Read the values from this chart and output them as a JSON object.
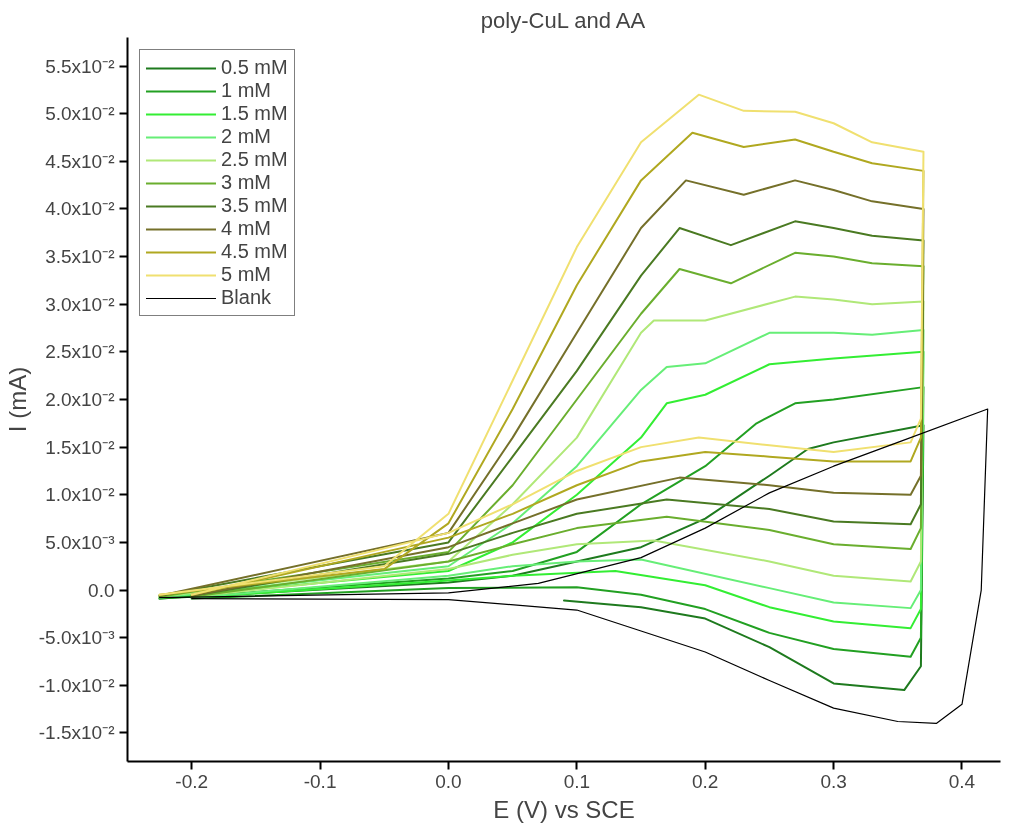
{
  "chart_data": {
    "type": "line",
    "title": "poly-CuL and AA",
    "xlabel": "E (V) vs SCE",
    "ylabel": "I (mA)",
    "xlim": [
      -0.25,
      0.43
    ],
    "ylim": [
      -0.018,
      0.058
    ],
    "xticks": [
      -0.2,
      -0.1,
      {
        "value": 0,
        "label": "0.0"
      },
      0.1,
      0.2,
      0.3,
      0.4
    ],
    "yticks": [
      {
        "value": -0.015,
        "label": "-1.5x10⁻²"
      },
      {
        "value": -0.01,
        "label": "-1.0x10⁻²"
      },
      {
        "value": -0.005,
        "label": "-5.0x10⁻³"
      },
      {
        "value": 0,
        "label": "0.0"
      },
      {
        "value": 0.005,
        "label": "5.0x10⁻³"
      },
      {
        "value": 0.01,
        "label": "1.0x10⁻²"
      },
      {
        "value": 0.015,
        "label": "1.5x10⁻²"
      },
      {
        "value": 0.02,
        "label": "2.0x10⁻²"
      },
      {
        "value": 0.025,
        "label": "2.5x10⁻²"
      },
      {
        "value": 0.03,
        "label": "3.0x10⁻²"
      },
      {
        "value": 0.035,
        "label": "3.5x10⁻²"
      },
      {
        "value": 0.04,
        "label": "4.0x10⁻²"
      },
      {
        "value": 0.045,
        "label": "4.5x10⁻²"
      },
      {
        "value": 0.05,
        "label": "5.0x10⁻²"
      },
      {
        "value": 0.055,
        "label": "5.5x10⁻²"
      }
    ],
    "grid": false,
    "legend": "top left",
    "marker": "none",
    "line_style": "solid",
    "series": [
      {
        "name": "0.5 mM",
        "color": "#1e7a1e",
        "x": [
          -0.225,
          0,
          0.05,
          0.1,
          0.15,
          0.2,
          0.25,
          0.28,
          0.3,
          0.37,
          0.368,
          0.355,
          0.3,
          0.25,
          0.2,
          0.15,
          0.09
        ],
        "values": [
          -0.0009,
          0.0008,
          0.0015,
          0.003,
          0.0045,
          0.0075,
          0.012,
          0.0148,
          0.0155,
          0.0173,
          -0.008,
          -0.0105,
          -0.0098,
          -0.006,
          -0.003,
          -0.0018,
          -0.0011
        ]
      },
      {
        "name": "1 mM",
        "color": "#22a022",
        "x": [
          -0.225,
          0,
          0.05,
          0.1,
          0.15,
          0.2,
          0.24,
          0.27,
          0.3,
          0.37,
          0.368,
          0.36,
          0.3,
          0.25,
          0.2,
          0.15,
          0.1,
          0,
          -0.2
        ],
        "values": [
          -0.0009,
          0.0012,
          0.002,
          0.004,
          0.009,
          0.013,
          0.0175,
          0.0196,
          0.02,
          0.0213,
          -0.005,
          -0.007,
          -0.0062,
          -0.0045,
          -0.002,
          -0.0005,
          0.0003,
          0.0002,
          -0.0009
        ]
      },
      {
        "name": "1.5 mM",
        "color": "#33ee33",
        "x": [
          -0.225,
          0,
          0.05,
          0.1,
          0.15,
          0.17,
          0.2,
          0.25,
          0.3,
          0.37,
          0.368,
          0.36,
          0.3,
          0.25,
          0.2,
          0.13,
          0.05,
          0,
          -0.2
        ],
        "values": [
          -0.0008,
          0.002,
          0.005,
          0.01,
          0.016,
          0.0196,
          0.0205,
          0.0237,
          0.0243,
          0.025,
          -0.002,
          -0.004,
          -0.0033,
          -0.0018,
          0.0005,
          0.002,
          0.0015,
          0.001,
          -0.0008
        ]
      },
      {
        "name": "2 mM",
        "color": "#66ee77",
        "x": [
          -0.225,
          0,
          0.05,
          0.1,
          0.15,
          0.17,
          0.2,
          0.25,
          0.3,
          0.33,
          0.37,
          0.368,
          0.36,
          0.3,
          0.25,
          0.15,
          0.1,
          0.05,
          0,
          -0.2
        ],
        "values": [
          -0.0008,
          0.0025,
          0.007,
          0.013,
          0.021,
          0.0234,
          0.0238,
          0.027,
          0.027,
          0.0268,
          0.0273,
          0.0,
          -0.0019,
          -0.0013,
          0.0002,
          0.0032,
          0.003,
          0.0025,
          0.0015,
          -0.0008
        ]
      },
      {
        "name": "2.5 mM",
        "color": "#b0e878",
        "x": [
          -0.225,
          0,
          0.05,
          0.1,
          0.15,
          0.16,
          0.2,
          0.27,
          0.3,
          0.33,
          0.37,
          0.368,
          0.36,
          0.3,
          0.25,
          0.16,
          0.1,
          0.05,
          0,
          -0.2
        ],
        "values": [
          -0.0007,
          0.003,
          0.009,
          0.016,
          0.027,
          0.0283,
          0.0283,
          0.0308,
          0.0305,
          0.03,
          0.0303,
          0.003,
          0.0009,
          0.0015,
          0.003,
          0.0052,
          0.0048,
          0.0037,
          0.0022,
          -0.0007
        ]
      },
      {
        "name": "3 mM",
        "color": "#6aae2e",
        "x": [
          -0.225,
          0,
          0.05,
          0.1,
          0.15,
          0.18,
          0.22,
          0.27,
          0.3,
          0.33,
          0.37,
          0.368,
          0.36,
          0.3,
          0.25,
          0.17,
          0.1,
          0.05,
          0,
          -0.2
        ],
        "values": [
          -0.0007,
          0.004,
          0.011,
          0.02,
          0.029,
          0.0337,
          0.0322,
          0.0354,
          0.035,
          0.0343,
          0.034,
          0.0065,
          0.0043,
          0.0048,
          0.0063,
          0.0077,
          0.0065,
          0.0048,
          0.003,
          -0.0007
        ]
      },
      {
        "name": "3.5 mM",
        "color": "#4a7a22",
        "x": [
          -0.225,
          0,
          0.05,
          0.1,
          0.15,
          0.18,
          0.22,
          0.27,
          0.3,
          0.33,
          0.37,
          0.368,
          0.36,
          0.3,
          0.25,
          0.17,
          0.1,
          0.05,
          0,
          -0.2
        ],
        "values": [
          -0.0006,
          0.005,
          0.014,
          0.023,
          0.033,
          0.038,
          0.0362,
          0.0387,
          0.038,
          0.0372,
          0.0367,
          0.009,
          0.0069,
          0.0072,
          0.0085,
          0.0095,
          0.008,
          0.006,
          0.0038,
          -0.0006
        ]
      },
      {
        "name": "4 mM",
        "color": "#75702a",
        "x": [
          -0.225,
          0,
          0.05,
          0.1,
          0.15,
          0.185,
          0.23,
          0.27,
          0.3,
          0.33,
          0.37,
          0.368,
          0.36,
          0.3,
          0.25,
          0.18,
          0.1,
          0.05,
          0,
          -0.2
        ],
        "values": [
          -0.0006,
          0.006,
          0.016,
          0.027,
          0.038,
          0.043,
          0.0415,
          0.043,
          0.042,
          0.0408,
          0.04,
          0.012,
          0.01,
          0.0102,
          0.011,
          0.0118,
          0.0095,
          0.007,
          0.0045,
          -0.0006
        ]
      },
      {
        "name": "4.5 mM",
        "color": "#b0a820",
        "x": [
          -0.225,
          -0.05,
          0,
          0.05,
          0.1,
          0.15,
          0.19,
          0.23,
          0.27,
          0.3,
          0.33,
          0.37,
          0.368,
          0.36,
          0.3,
          0.25,
          0.2,
          0.15,
          0.1,
          0.05,
          0,
          -0.2
        ],
        "values": [
          -0.0005,
          0.0022,
          0.007,
          0.019,
          0.032,
          0.043,
          0.048,
          0.0465,
          0.0473,
          0.046,
          0.0448,
          0.044,
          0.016,
          0.0135,
          0.0135,
          0.014,
          0.0145,
          0.0135,
          0.011,
          0.008,
          0.0055,
          -0.0005
        ]
      },
      {
        "name": "5 mM",
        "color": "#f0e070",
        "x": [
          -0.225,
          -0.05,
          0,
          0.05,
          0.1,
          0.15,
          0.195,
          0.23,
          0.27,
          0.3,
          0.33,
          0.37,
          0.368,
          0.36,
          0.3,
          0.25,
          0.195,
          0.15,
          0.1,
          0.05,
          0,
          -0.2
        ],
        "values": [
          -0.0005,
          0.0025,
          0.008,
          0.022,
          0.036,
          0.047,
          0.052,
          0.0503,
          0.0502,
          0.049,
          0.047,
          0.046,
          0.018,
          0.0155,
          0.0145,
          0.0152,
          0.016,
          0.015,
          0.0125,
          0.009,
          0.006,
          -0.0005
        ]
      },
      {
        "name": "Blank",
        "color": "#000000",
        "x": [
          -0.225,
          0,
          0.07,
          0.15,
          0.2,
          0.25,
          0.3,
          0.35,
          0.42,
          0.415,
          0.4,
          0.38,
          0.35,
          0.3,
          0.25,
          0.2,
          0.1,
          0,
          -0.2
        ],
        "values": [
          -0.0008,
          -0.0003,
          0.0007,
          0.0034,
          0.0065,
          0.0102,
          0.013,
          0.0155,
          0.019,
          0.0,
          -0.012,
          -0.014,
          -0.0138,
          -0.0124,
          -0.0095,
          -0.0065,
          -0.0021,
          -0.001,
          -0.0009
        ]
      }
    ]
  }
}
